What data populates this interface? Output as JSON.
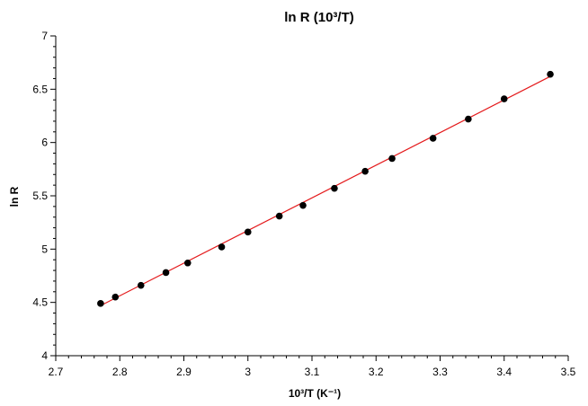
{
  "chart_data": {
    "type": "scatter",
    "title": "ln R (10³/T)",
    "xlabel": "10³/T (K⁻¹)",
    "ylabel": "ln R",
    "xlim": [
      2.7,
      3.5
    ],
    "ylim": [
      4,
      7
    ],
    "x_ticks": [
      "2.7",
      "2.8",
      "2.9",
      "3",
      "3.1",
      "3.2",
      "3.3",
      "3.4",
      "3.5"
    ],
    "y_ticks": [
      "4",
      "4.5",
      "5",
      "5.5",
      "6",
      "6.5",
      "7"
    ],
    "grid": false,
    "legend": "none",
    "series": [
      {
        "type": "scatter",
        "color": "#000000",
        "points": [
          [
            2.77,
            4.49
          ],
          [
            2.793,
            4.55
          ],
          [
            2.833,
            4.66
          ],
          [
            2.872,
            4.78
          ],
          [
            2.906,
            4.87
          ],
          [
            2.959,
            5.02
          ],
          [
            3.0,
            5.16
          ],
          [
            3.049,
            5.31
          ],
          [
            3.086,
            5.41
          ],
          [
            3.135,
            5.57
          ],
          [
            3.183,
            5.73
          ],
          [
            3.225,
            5.85
          ],
          [
            3.289,
            6.04
          ],
          [
            3.344,
            6.22
          ],
          [
            3.4,
            6.41
          ],
          [
            3.472,
            6.64
          ]
        ]
      },
      {
        "type": "line",
        "color": "#e41a1c",
        "points": [
          [
            2.77,
            4.47
          ],
          [
            3.472,
            6.62
          ]
        ]
      }
    ]
  }
}
